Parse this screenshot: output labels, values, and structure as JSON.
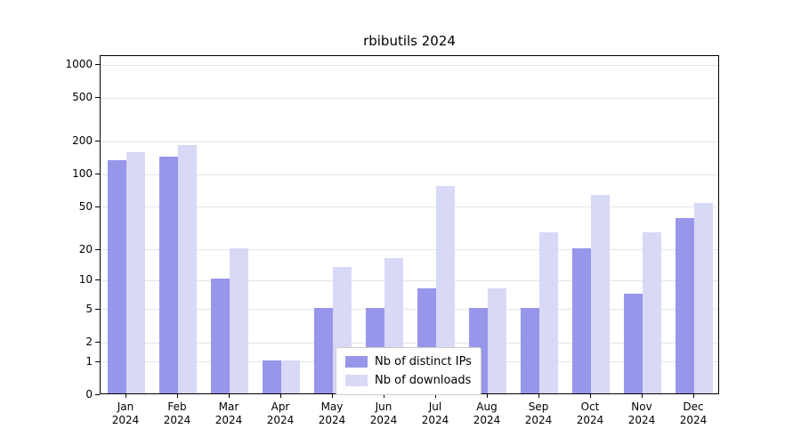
{
  "chart_data": {
    "type": "bar",
    "title": "rbibutils 2024",
    "categories": [
      "Jan 2024",
      "Feb 2024",
      "Mar 2024",
      "Apr 2024",
      "May 2024",
      "Jun 2024",
      "Jul 2024",
      "Aug 2024",
      "Sep 2024",
      "Oct 2024",
      "Nov 2024",
      "Dec 2024"
    ],
    "series": [
      {
        "name": "Nb of distinct IPs",
        "color": "#9696ea",
        "values": [
          130,
          140,
          10,
          1,
          5,
          5,
          8,
          5,
          5,
          20,
          7,
          38
        ]
      },
      {
        "name": "Nb of downloads",
        "color": "#d8d8f7",
        "values": [
          155,
          180,
          20,
          1,
          13,
          16,
          75,
          8,
          28,
          63,
          28,
          53
        ]
      }
    ],
    "yticks": [
      0,
      1,
      2,
      5,
      10,
      20,
      50,
      100,
      200,
      500,
      1000
    ],
    "y_scale": "log1p",
    "ylim": [
      0,
      1200
    ],
    "xlabel": "",
    "ylabel": "",
    "grid": "horizontal",
    "gridline_color": "#e4e4e4",
    "legend_position": "bottom-center-inside"
  }
}
